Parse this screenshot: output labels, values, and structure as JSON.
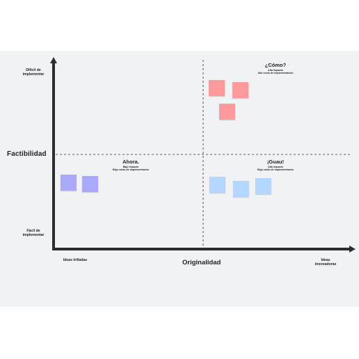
{
  "axes": {
    "y_title": "Factibilidad",
    "x_title": "Originalidad",
    "y_top": "Difícil de implementar",
    "y_bottom": "Fácil de implementar",
    "x_left": "Ideas trilladas",
    "x_right": "Ideas innovadoras"
  },
  "quadrants": {
    "top_right": {
      "title": "¿Cómo?",
      "line1": "Alto impacto",
      "line2": "Alto costo de implementación"
    },
    "bottom_left": {
      "title": "Ahora.",
      "line1": "Bajo impacto",
      "line2": "Bajo costo de implementación"
    },
    "bottom_right": {
      "title": "¡Guau!",
      "line1": "Alto impacto",
      "line2": "Bajo costo de implementación"
    }
  },
  "colors": {
    "red_note": "#ff9a9c",
    "purple_note": "#aaa8ff",
    "blue_note": "#b5d6ff",
    "axis": "#2c2c33",
    "board": "#f1f2f4"
  }
}
